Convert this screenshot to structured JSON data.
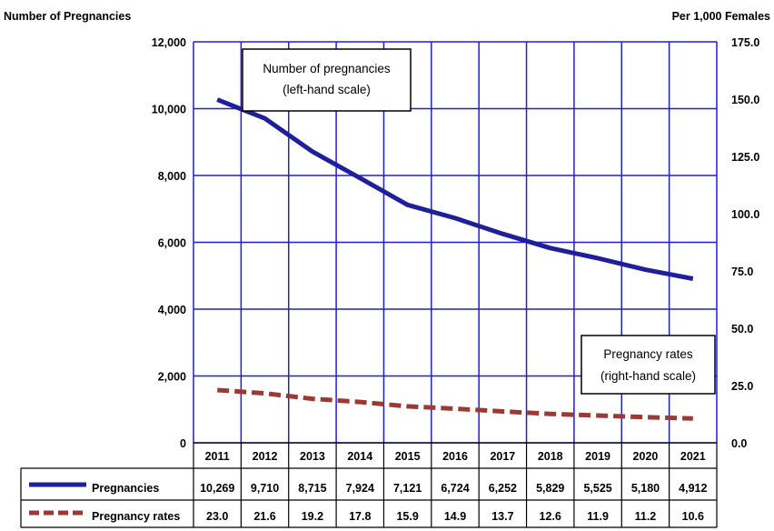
{
  "left_axis_title": "Number of Pregnancies",
  "right_axis_title": "Per 1,000 Females",
  "annotations": {
    "left": {
      "line1": "Number of pregnancies",
      "line2": "(left-hand scale)"
    },
    "right": {
      "line1": "Pregnancy rates",
      "line2": "(right-hand scale)"
    }
  },
  "colors": {
    "grid": "#1f1fd6",
    "pregnancies": "#1f1f9c",
    "rates": "#9b3a33"
  },
  "chart_data": {
    "type": "line",
    "categories": [
      "2011",
      "2012",
      "2013",
      "2014",
      "2015",
      "2016",
      "2017",
      "2018",
      "2019",
      "2020",
      "2021"
    ],
    "y_left": {
      "min": 0,
      "max": 12000,
      "ticks": [
        0,
        2000,
        4000,
        6000,
        8000,
        10000,
        12000
      ],
      "tick_labels": [
        "0",
        "2,000",
        "4,000",
        "6,000",
        "8,000",
        "10,000",
        "12,000"
      ]
    },
    "y_right": {
      "min": 0,
      "max": 175,
      "ticks": [
        0,
        25,
        50,
        75,
        100,
        125,
        150,
        175
      ],
      "tick_labels": [
        "0.0",
        "25.0",
        "50.0",
        "75.0",
        "100.0",
        "125.0",
        "150.0",
        "175.0"
      ]
    },
    "grid": true,
    "series": [
      {
        "name": "Pregnancies",
        "axis": "left",
        "style": "solid",
        "values": [
          10269,
          9710,
          8715,
          7924,
          7121,
          6724,
          6252,
          5829,
          5525,
          5180,
          4912
        ],
        "labels": [
          "10,269",
          "9,710",
          "8,715",
          "7,924",
          "7,121",
          "6,724",
          "6,252",
          "5,829",
          "5,525",
          "5,180",
          "4,912"
        ]
      },
      {
        "name": "Pregnancy rates",
        "axis": "right",
        "style": "dashed",
        "values": [
          23.0,
          21.6,
          19.2,
          17.8,
          15.9,
          14.9,
          13.7,
          12.6,
          11.9,
          11.2,
          10.6
        ],
        "labels": [
          "23.0",
          "21.6",
          "19.2",
          "17.8",
          "15.9",
          "14.9",
          "13.7",
          "12.6",
          "11.9",
          "11.2",
          "10.6"
        ]
      }
    ]
  }
}
